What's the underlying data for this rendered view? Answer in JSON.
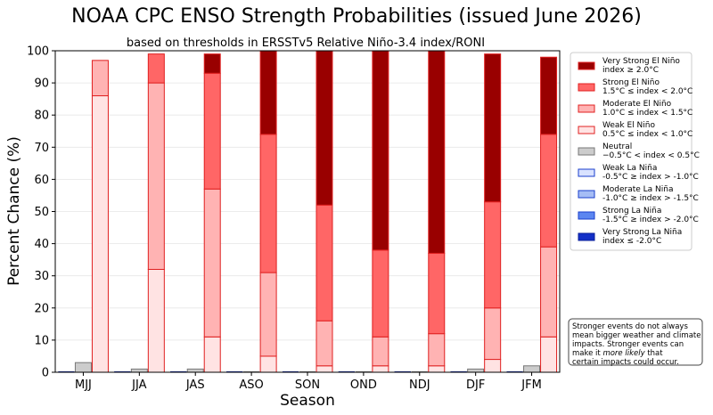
{
  "chart_data": {
    "type": "bar",
    "title": "NOAA CPC ENSO Strength Probabilities (issued June 2026)",
    "subtitle": "based on thresholds in ERSSTv5 Relative Niño-3.4 index/RONI",
    "xlabel": "Season",
    "ylabel": "Percent Chance (%)",
    "ylim": [
      0,
      100
    ],
    "yticks": [
      0,
      10,
      20,
      30,
      40,
      50,
      60,
      70,
      80,
      90,
      100
    ],
    "categories": [
      "MJJ",
      "JJA",
      "JAS",
      "ASO",
      "SON",
      "OND",
      "NDJ",
      "DJF",
      "JFM"
    ],
    "grid": "horizontal",
    "legend_position": "right",
    "la_nina": {
      "series": [
        {
          "name": "Weak La Niña\n-0.5°C ≥ index > -1.0°C",
          "color": "#d9e2ff",
          "edge": "#1a3fcc",
          "values": [
            0,
            0,
            0,
            0,
            0,
            0,
            0,
            0,
            0
          ]
        },
        {
          "name": "Moderate La Niña\n-1.0°C ≥ index > -1.5°C",
          "color": "#a6bdf5",
          "edge": "#1a3fcc",
          "values": [
            0,
            0,
            0,
            0,
            0,
            0,
            0,
            0,
            0
          ]
        },
        {
          "name": "Strong La Niña\n-1.5°C ≥ index > -2.0°C",
          "color": "#5c86f0",
          "edge": "#1a3fcc",
          "values": [
            0,
            0,
            0,
            0,
            0,
            0,
            0,
            0,
            0
          ]
        },
        {
          "name": "Very Strong La Niña\nindex ≤ -2.0°C",
          "color": "#1330c7",
          "edge": "#0a1f99",
          "values": [
            0,
            0,
            0,
            0,
            0,
            0,
            0,
            0,
            0
          ]
        }
      ]
    },
    "neutral": {
      "series": [
        {
          "name": "Neutral\n−0.5°C < index < 0.5°C",
          "color": "#cccccc",
          "edge": "#777777",
          "values": [
            3,
            1,
            1,
            0,
            0,
            0,
            0,
            1,
            2
          ]
        }
      ]
    },
    "el_nino": {
      "series": [
        {
          "name": "Weak El Niño\n0.5°C ≤ index < 1.0°C",
          "color": "#ffe3e3",
          "edge": "#e02020",
          "values": [
            86,
            32,
            11,
            5,
            2,
            2,
            2,
            4,
            11
          ]
        },
        {
          "name": "Moderate El Niño\n1.0°C ≤ index < 1.5°C",
          "color": "#ffb3b3",
          "edge": "#e02020",
          "values": [
            11,
            58,
            46,
            26,
            14,
            9,
            10,
            16,
            28
          ]
        },
        {
          "name": "Strong El Niño\n1.5°C ≤ index < 2.0°C",
          "color": "#ff6666",
          "edge": "#e02020",
          "values": [
            0,
            9,
            36,
            43,
            36,
            27,
            25,
            33,
            35
          ]
        },
        {
          "name": "Very Strong El Niño\nindex ≥ 2.0°C",
          "color": "#990000",
          "edge": "#e02020",
          "values": [
            0,
            0,
            6,
            26,
            48,
            62,
            63,
            46,
            24
          ]
        }
      ]
    },
    "legend_order": [
      "Very Strong El Niño\nindex ≥ 2.0°C",
      "Strong El Niño\n1.5°C ≤ index < 2.0°C",
      "Moderate El Niño\n1.0°C ≤ index < 1.5°C",
      "Weak El Niño\n0.5°C ≤ index < 1.0°C",
      "Neutral\n−0.5°C < index < 0.5°C",
      "Weak La Niña\n-0.5°C ≥ index > -1.0°C",
      "Moderate La Niña\n-1.0°C ≥ index > -1.5°C",
      "Strong La Niña\n-1.5°C ≥ index > -2.0°C",
      "Very Strong La Niña\nindex ≤ -2.0°C"
    ],
    "note": "Stronger events do not always mean bigger weather and climate impacts. Stronger events can make it more likely that certain impacts could occur.",
    "note_emphasis": "more likely"
  }
}
